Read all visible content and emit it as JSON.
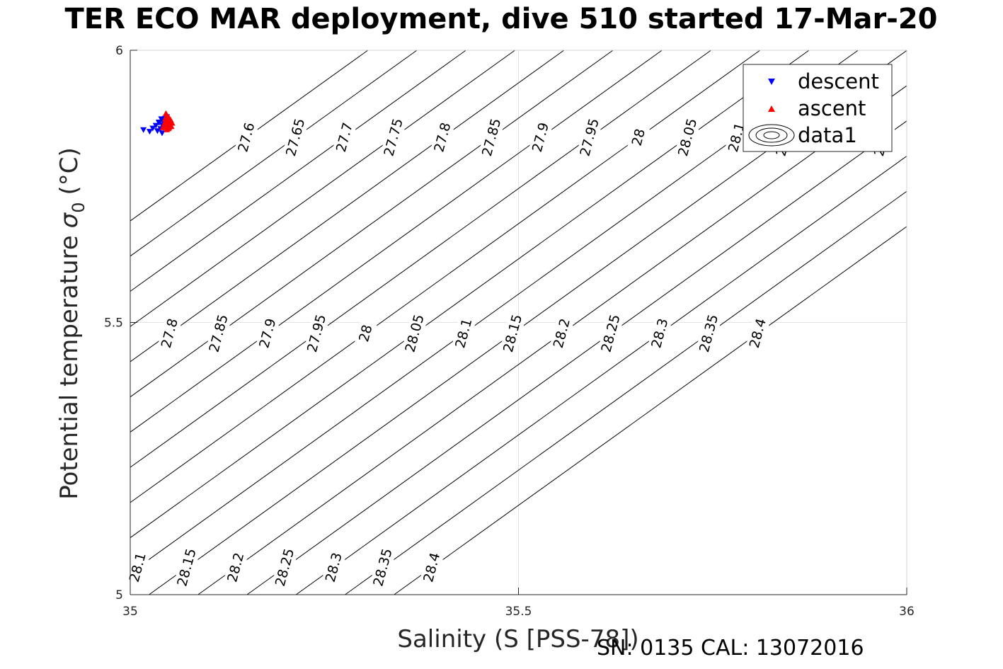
{
  "chart_data": {
    "type": "scatter",
    "title": "TER ECO MAR deployment, dive 510 started 17-Mar-20",
    "xlabel": "Salinity (S [PSS-78])",
    "ylabel": "Potential temperature",
    "ylabel_symbol": "σ",
    "ylabel_subscript": "0",
    "ylabel_unit": "(°C)",
    "xlim": [
      35,
      36
    ],
    "ylim": [
      5,
      6
    ],
    "xticks": [
      "35",
      "35.5",
      "36"
    ],
    "yticks": [
      "5",
      "5.5",
      "6"
    ],
    "grid": true,
    "legend_position": "top-right",
    "legend": [
      "descent",
      "ascent",
      "data1"
    ],
    "density_contours": {
      "levels": [
        "27.6",
        "27.65",
        "27.7",
        "27.75",
        "27.8",
        "27.85",
        "27.9",
        "27.95",
        "28",
        "28.05",
        "28.1",
        "28.15",
        "28.2",
        "28.25",
        "28.3",
        "28.35",
        "28.4"
      ],
      "labels_top": [
        "27.6",
        "27.65",
        "27.7",
        "27.75",
        "27.8",
        "27.85",
        "27.9",
        "27.95",
        "28",
        "28.05",
        "28.1",
        "28.15",
        "28.2",
        "28.25",
        "28.3",
        "28.35"
      ],
      "labels_mid": [
        "27.65",
        "27.7",
        "27.75",
        "27.8",
        "27.85",
        "27.9",
        "27.95",
        "28",
        "28.05",
        "28.1",
        "28.15",
        "28.2",
        "28.25",
        "28.3",
        "28.35",
        "28.4"
      ],
      "labels_bottom": [
        "27.7",
        "27.75",
        "27.8",
        "27.85",
        "27.9",
        "27.95",
        "28",
        "28.05",
        "28.1",
        "28.15",
        "28.2",
        "28.25",
        "28.3",
        "28.35",
        "28.4"
      ]
    },
    "series": [
      {
        "name": "descent",
        "color": "#0000ff",
        "marker": "triangle-down",
        "x": [
          35.017,
          35.025,
          35.029,
          35.033,
          35.035,
          35.037,
          35.039,
          35.04,
          35.041,
          35.042,
          35.043,
          35.044,
          35.045,
          35.046,
          35.047,
          35.047,
          35.048,
          35.044,
          35.041,
          35.037
        ],
        "y": [
          5.854,
          5.851,
          5.857,
          5.862,
          5.852,
          5.868,
          5.856,
          5.874,
          5.863,
          5.87,
          5.858,
          5.866,
          5.875,
          5.862,
          5.87,
          5.878,
          5.865,
          5.873,
          5.848,
          5.867
        ]
      },
      {
        "name": "ascent",
        "color": "#ff0000",
        "marker": "triangle-up",
        "x": [
          35.042,
          35.044,
          35.045,
          35.046,
          35.047,
          35.048,
          35.049,
          35.05,
          35.051,
          35.052,
          35.053,
          35.054,
          35.046,
          35.048,
          35.05,
          35.052,
          35.049,
          35.047
        ],
        "y": [
          5.858,
          5.866,
          5.874,
          5.86,
          5.88,
          5.87,
          5.856,
          5.876,
          5.864,
          5.872,
          5.86,
          5.866,
          5.884,
          5.862,
          5.858,
          5.868,
          5.877,
          5.854
        ]
      }
    ]
  },
  "footer": {
    "text": "SN: 0135  CAL: 13072016"
  }
}
